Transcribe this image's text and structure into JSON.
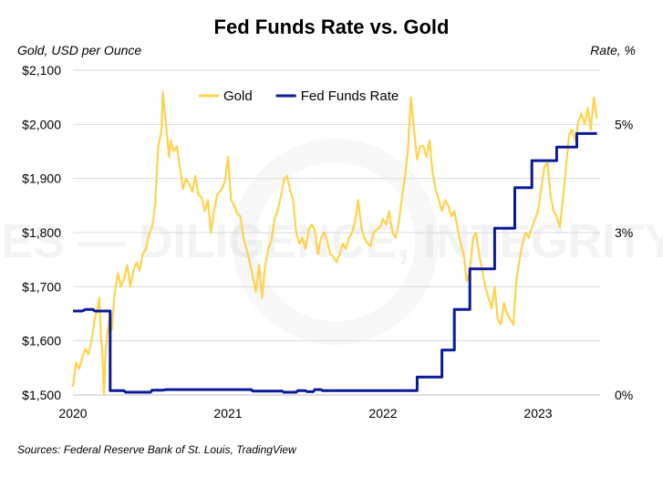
{
  "chart_data": {
    "type": "line",
    "title": "Fed Funds Rate vs. Gold",
    "left_axis_title": "Gold, USD per Ounce",
    "right_axis_title": "Rate, %",
    "source": "Sources: Federal Reserve Bank of St. Louis, TradingView",
    "watermark": "LOUIS JAMES — DILIGENCE, INTEGRITY, RESULTS.",
    "x_ticks": [
      "2020",
      "2021",
      "2022",
      "2023"
    ],
    "x_tick_values": [
      2020,
      2021,
      2022,
      2023
    ],
    "xlim": [
      2020,
      2023.4
    ],
    "y_left_ticks": [
      "$1,500",
      "$1,600",
      "$1,700",
      "$1,800",
      "$1,900",
      "$2,000",
      "$2,100"
    ],
    "y_left_tick_values": [
      1500,
      1600,
      1700,
      1800,
      1900,
      2000,
      2100
    ],
    "ylim_left": [
      1500,
      2100
    ],
    "y_right_ticks": [
      "0%",
      "3%",
      "5%"
    ],
    "y_right_tick_values": [
      0,
      3,
      5
    ],
    "ylim_right": [
      0,
      6
    ],
    "grid": true,
    "legend_position": "top-center",
    "series": [
      {
        "name": "Gold",
        "axis": "left",
        "color": "#FFD24C",
        "points": [
          [
            2020.0,
            1515
          ],
          [
            2020.02,
            1560
          ],
          [
            2020.04,
            1548
          ],
          [
            2020.06,
            1570
          ],
          [
            2020.08,
            1585
          ],
          [
            2020.1,
            1575
          ],
          [
            2020.12,
            1600
          ],
          [
            2020.14,
            1640
          ],
          [
            2020.16,
            1660
          ],
          [
            2020.17,
            1680
          ],
          [
            2020.18,
            1610
          ],
          [
            2020.19,
            1575
          ],
          [
            2020.2,
            1500
          ],
          [
            2020.21,
            1575
          ],
          [
            2020.22,
            1610
          ],
          [
            2020.24,
            1650
          ],
          [
            2020.25,
            1620
          ],
          [
            2020.27,
            1690
          ],
          [
            2020.29,
            1725
          ],
          [
            2020.31,
            1700
          ],
          [
            2020.33,
            1715
          ],
          [
            2020.35,
            1740
          ],
          [
            2020.37,
            1700
          ],
          [
            2020.39,
            1730
          ],
          [
            2020.41,
            1745
          ],
          [
            2020.43,
            1730
          ],
          [
            2020.45,
            1760
          ],
          [
            2020.47,
            1770
          ],
          [
            2020.49,
            1795
          ],
          [
            2020.51,
            1810
          ],
          [
            2020.53,
            1850
          ],
          [
            2020.55,
            1960
          ],
          [
            2020.57,
            1985
          ],
          [
            2020.58,
            2060
          ],
          [
            2020.6,
            2000
          ],
          [
            2020.62,
            1940
          ],
          [
            2020.63,
            1970
          ],
          [
            2020.65,
            1950
          ],
          [
            2020.67,
            1960
          ],
          [
            2020.69,
            1920
          ],
          [
            2020.71,
            1880
          ],
          [
            2020.73,
            1900
          ],
          [
            2020.75,
            1890
          ],
          [
            2020.77,
            1875
          ],
          [
            2020.79,
            1905
          ],
          [
            2020.81,
            1870
          ],
          [
            2020.83,
            1865
          ],
          [
            2020.85,
            1840
          ],
          [
            2020.87,
            1860
          ],
          [
            2020.89,
            1800
          ],
          [
            2020.91,
            1840
          ],
          [
            2020.93,
            1870
          ],
          [
            2020.96,
            1880
          ],
          [
            2020.98,
            1895
          ],
          [
            2021.0,
            1940
          ],
          [
            2021.02,
            1860
          ],
          [
            2021.04,
            1850
          ],
          [
            2021.06,
            1835
          ],
          [
            2021.08,
            1830
          ],
          [
            2021.1,
            1790
          ],
          [
            2021.12,
            1770
          ],
          [
            2021.14,
            1745
          ],
          [
            2021.16,
            1720
          ],
          [
            2021.18,
            1690
          ],
          [
            2021.2,
            1740
          ],
          [
            2021.22,
            1680
          ],
          [
            2021.24,
            1740
          ],
          [
            2021.26,
            1770
          ],
          [
            2021.28,
            1785
          ],
          [
            2021.3,
            1825
          ],
          [
            2021.32,
            1840
          ],
          [
            2021.34,
            1865
          ],
          [
            2021.36,
            1895
          ],
          [
            2021.38,
            1905
          ],
          [
            2021.4,
            1880
          ],
          [
            2021.42,
            1860
          ],
          [
            2021.44,
            1800
          ],
          [
            2021.46,
            1780
          ],
          [
            2021.48,
            1790
          ],
          [
            2021.5,
            1770
          ],
          [
            2021.52,
            1805
          ],
          [
            2021.54,
            1815
          ],
          [
            2021.56,
            1805
          ],
          [
            2021.58,
            1760
          ],
          [
            2021.6,
            1790
          ],
          [
            2021.62,
            1800
          ],
          [
            2021.64,
            1785
          ],
          [
            2021.66,
            1760
          ],
          [
            2021.68,
            1755
          ],
          [
            2021.7,
            1745
          ],
          [
            2021.72,
            1760
          ],
          [
            2021.74,
            1780
          ],
          [
            2021.76,
            1770
          ],
          [
            2021.78,
            1790
          ],
          [
            2021.8,
            1800
          ],
          [
            2021.82,
            1820
          ],
          [
            2021.84,
            1860
          ],
          [
            2021.86,
            1810
          ],
          [
            2021.88,
            1790
          ],
          [
            2021.9,
            1780
          ],
          [
            2021.92,
            1775
          ],
          [
            2021.94,
            1800
          ],
          [
            2021.96,
            1805
          ],
          [
            2021.98,
            1810
          ],
          [
            2022.0,
            1825
          ],
          [
            2022.02,
            1815
          ],
          [
            2022.04,
            1840
          ],
          [
            2022.06,
            1800
          ],
          [
            2022.08,
            1790
          ],
          [
            2022.1,
            1815
          ],
          [
            2022.12,
            1860
          ],
          [
            2022.14,
            1900
          ],
          [
            2022.16,
            1950
          ],
          [
            2022.18,
            2050
          ],
          [
            2022.2,
            1990
          ],
          [
            2022.22,
            1935
          ],
          [
            2022.24,
            1960
          ],
          [
            2022.26,
            1960
          ],
          [
            2022.28,
            1940
          ],
          [
            2022.3,
            1970
          ],
          [
            2022.32,
            1910
          ],
          [
            2022.34,
            1880
          ],
          [
            2022.36,
            1860
          ],
          [
            2022.38,
            1840
          ],
          [
            2022.4,
            1860
          ],
          [
            2022.42,
            1850
          ],
          [
            2022.44,
            1830
          ],
          [
            2022.46,
            1840
          ],
          [
            2022.48,
            1810
          ],
          [
            2022.5,
            1780
          ],
          [
            2022.52,
            1760
          ],
          [
            2022.54,
            1710
          ],
          [
            2022.56,
            1730
          ],
          [
            2022.58,
            1790
          ],
          [
            2022.6,
            1800
          ],
          [
            2022.62,
            1760
          ],
          [
            2022.64,
            1730
          ],
          [
            2022.66,
            1700
          ],
          [
            2022.68,
            1680
          ],
          [
            2022.7,
            1660
          ],
          [
            2022.72,
            1700
          ],
          [
            2022.74,
            1640
          ],
          [
            2022.76,
            1630
          ],
          [
            2022.78,
            1670
          ],
          [
            2022.8,
            1650
          ],
          [
            2022.82,
            1640
          ],
          [
            2022.84,
            1630
          ],
          [
            2022.86,
            1710
          ],
          [
            2022.88,
            1750
          ],
          [
            2022.9,
            1780
          ],
          [
            2022.92,
            1800
          ],
          [
            2022.94,
            1790
          ],
          [
            2022.96,
            1810
          ],
          [
            2022.98,
            1825
          ],
          [
            2023.0,
            1840
          ],
          [
            2023.02,
            1880
          ],
          [
            2023.04,
            1920
          ],
          [
            2023.06,
            1930
          ],
          [
            2023.08,
            1870
          ],
          [
            2023.1,
            1840
          ],
          [
            2023.12,
            1830
          ],
          [
            2023.14,
            1810
          ],
          [
            2023.16,
            1860
          ],
          [
            2023.18,
            1920
          ],
          [
            2023.2,
            1980
          ],
          [
            2023.22,
            1990
          ],
          [
            2023.24,
            1970
          ],
          [
            2023.26,
            2005
          ],
          [
            2023.28,
            2020
          ],
          [
            2023.3,
            2000
          ],
          [
            2023.32,
            2030
          ],
          [
            2023.34,
            1990
          ],
          [
            2023.36,
            2050
          ],
          [
            2023.38,
            2010
          ]
        ]
      },
      {
        "name": "Fed Funds Rate",
        "axis": "right",
        "color": "#0A1A96",
        "points": [
          [
            2020.0,
            1.55
          ],
          [
            2020.06,
            1.55
          ],
          [
            2020.08,
            1.58
          ],
          [
            2020.13,
            1.58
          ],
          [
            2020.14,
            1.55
          ],
          [
            2020.24,
            1.55
          ],
          [
            2020.24,
            0.08
          ],
          [
            2020.33,
            0.08
          ],
          [
            2020.34,
            0.05
          ],
          [
            2020.5,
            0.05
          ],
          [
            2020.51,
            0.09
          ],
          [
            2020.58,
            0.09
          ],
          [
            2020.6,
            0.1
          ],
          [
            2021.15,
            0.1
          ],
          [
            2021.16,
            0.07
          ],
          [
            2021.35,
            0.07
          ],
          [
            2021.36,
            0.05
          ],
          [
            2021.44,
            0.05
          ],
          [
            2021.45,
            0.08
          ],
          [
            2021.5,
            0.08
          ],
          [
            2021.51,
            0.06
          ],
          [
            2021.55,
            0.06
          ],
          [
            2021.56,
            0.1
          ],
          [
            2021.6,
            0.1
          ],
          [
            2021.61,
            0.08
          ],
          [
            2022.0,
            0.08
          ],
          [
            2022.22,
            0.08
          ],
          [
            2022.22,
            0.33
          ],
          [
            2022.38,
            0.33
          ],
          [
            2022.38,
            0.83
          ],
          [
            2022.46,
            0.83
          ],
          [
            2022.46,
            1.58
          ],
          [
            2022.56,
            1.58
          ],
          [
            2022.56,
            2.33
          ],
          [
            2022.72,
            2.33
          ],
          [
            2022.72,
            3.08
          ],
          [
            2022.85,
            3.08
          ],
          [
            2022.85,
            3.83
          ],
          [
            2022.96,
            3.83
          ],
          [
            2022.96,
            4.33
          ],
          [
            2023.12,
            4.33
          ],
          [
            2023.12,
            4.58
          ],
          [
            2023.25,
            4.58
          ],
          [
            2023.25,
            4.83
          ],
          [
            2023.38,
            4.83
          ]
        ]
      }
    ]
  }
}
